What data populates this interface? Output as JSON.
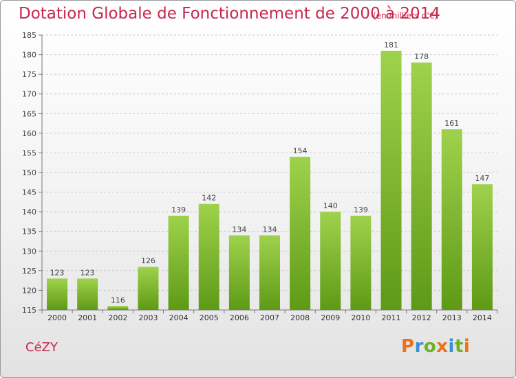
{
  "header": {
    "title": "Dotation Globale de Fonctionnement de 2000 à 2014",
    "subtitle": "(en milliers d'€)"
  },
  "footer": {
    "commune": "CéZY",
    "logo_text": "Proxiti",
    "logo_colors": [
      "#e8731c",
      "#3a8fd6",
      "#6cb12a",
      "#e8731c",
      "#3a8fd6",
      "#6cb12a",
      "#e8731c"
    ]
  },
  "colors": {
    "bar_top": "#9fd24c",
    "bar_bottom": "#5e9a16",
    "accent": "#c8274f"
  },
  "chart_data": {
    "type": "bar",
    "title": "Dotation Globale de Fonctionnement de 2000 à 2014",
    "subtitle": "(en milliers d'€)",
    "categories": [
      "2000",
      "2001",
      "2002",
      "2003",
      "2004",
      "2005",
      "2006",
      "2007",
      "2008",
      "2009",
      "2010",
      "2011",
      "2012",
      "2013",
      "2014"
    ],
    "values": [
      123,
      123,
      116,
      126,
      139,
      142,
      134,
      134,
      154,
      140,
      139,
      181,
      178,
      161,
      147
    ],
    "ylim": [
      115,
      185
    ],
    "yticks": [
      115,
      120,
      125,
      130,
      135,
      140,
      145,
      150,
      155,
      160,
      165,
      170,
      175,
      180,
      185
    ],
    "grid": true,
    "data_labels": true
  }
}
